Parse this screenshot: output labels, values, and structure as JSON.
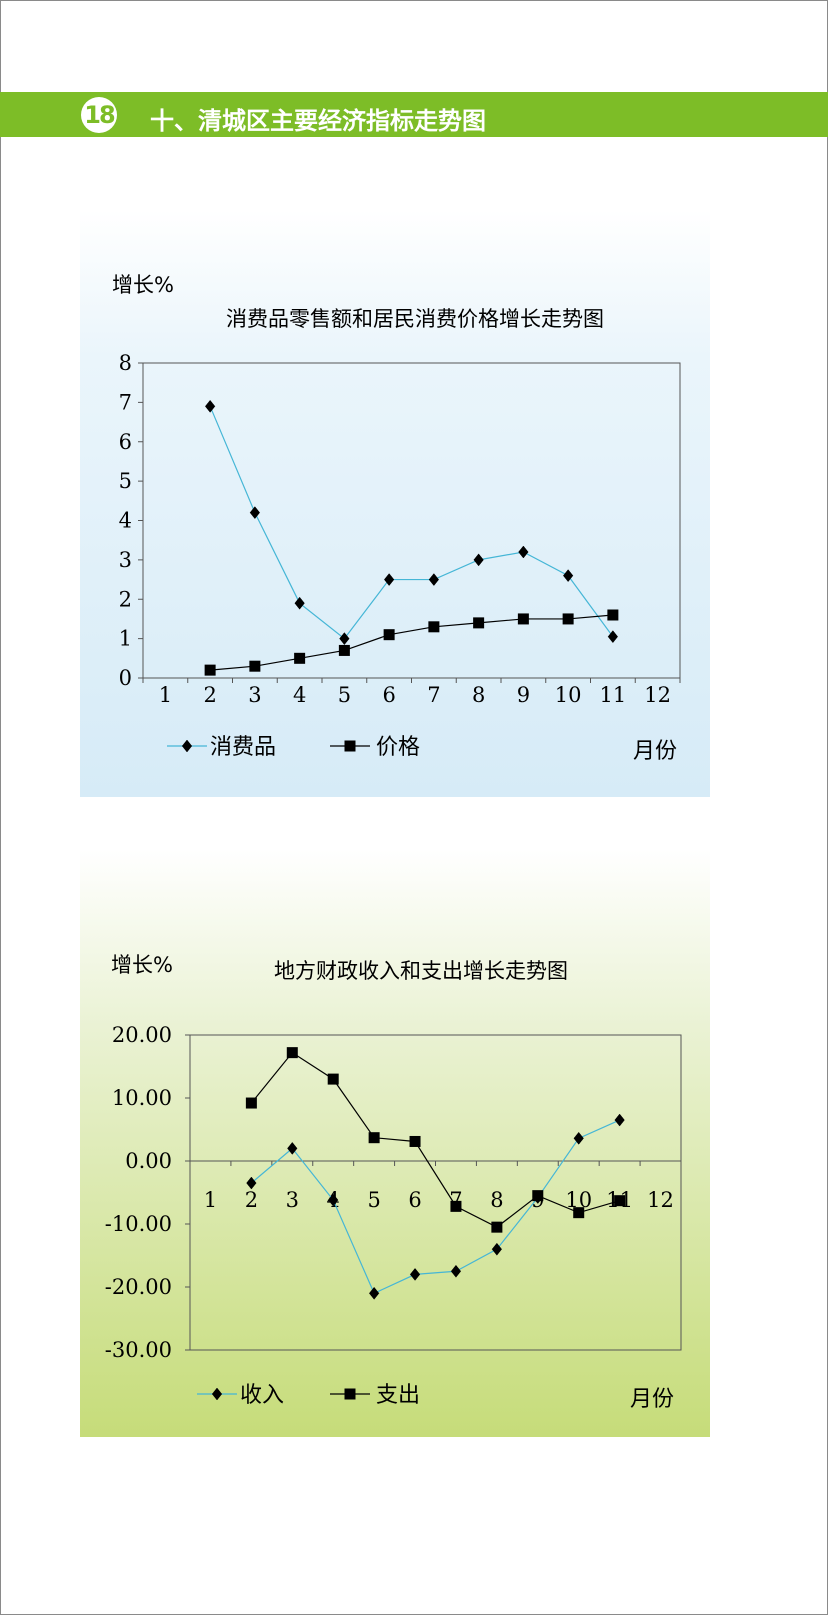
{
  "header": {
    "badge": "18",
    "title": "十、清城区主要经济指标走势图"
  },
  "colors": {
    "header_green": "#7dbd27",
    "series_cyan": "#45b6d6",
    "series_black": "#000000"
  },
  "chart_data": [
    {
      "type": "line",
      "title": "消费品零售额和居民消费价格增长走势图",
      "ylabel": "增长%",
      "xlabel": "月份",
      "categories": [
        "1",
        "2",
        "3",
        "4",
        "5",
        "6",
        "7",
        "8",
        "9",
        "10",
        "11",
        "12"
      ],
      "ylim": [
        0,
        8
      ],
      "yticks": [
        "0",
        "1",
        "2",
        "3",
        "4",
        "5",
        "6",
        "7",
        "8"
      ],
      "grid": false,
      "legend_position": "bottom",
      "series": [
        {
          "name": "消费品",
          "marker": "diamond",
          "color": "#45b6d6",
          "values": [
            null,
            6.9,
            4.2,
            1.9,
            1.0,
            2.5,
            2.5,
            3.0,
            3.2,
            2.6,
            1.05,
            null
          ]
        },
        {
          "name": "价格",
          "marker": "square",
          "color": "#000000",
          "values": [
            null,
            0.2,
            0.3,
            0.5,
            0.7,
            1.1,
            1.3,
            1.4,
            1.5,
            1.5,
            1.6,
            null
          ]
        }
      ]
    },
    {
      "type": "line",
      "title": "地方财政收入和支出增长走势图",
      "ylabel": "增长%",
      "xlabel": "月份",
      "categories": [
        "1",
        "2",
        "3",
        "4",
        "5",
        "6",
        "7",
        "8",
        "9",
        "10",
        "11",
        "12"
      ],
      "ylim": [
        -30,
        20
      ],
      "yticks": [
        "-30.00",
        "-20.00",
        "-10.00",
        "0.00",
        "10.00",
        "20.00"
      ],
      "grid": false,
      "legend_position": "bottom",
      "series": [
        {
          "name": "收入",
          "marker": "diamond",
          "color": "#45b6d6",
          "values": [
            null,
            -3.5,
            2.0,
            -6.2,
            -21.0,
            -18.0,
            -17.5,
            -14.0,
            -5.8,
            3.6,
            6.5,
            null
          ]
        },
        {
          "name": "支出",
          "marker": "square",
          "color": "#000000",
          "values": [
            null,
            9.2,
            17.2,
            13.0,
            3.7,
            3.1,
            -7.2,
            -10.5,
            -5.5,
            -8.2,
            -6.3,
            null
          ]
        }
      ]
    }
  ]
}
